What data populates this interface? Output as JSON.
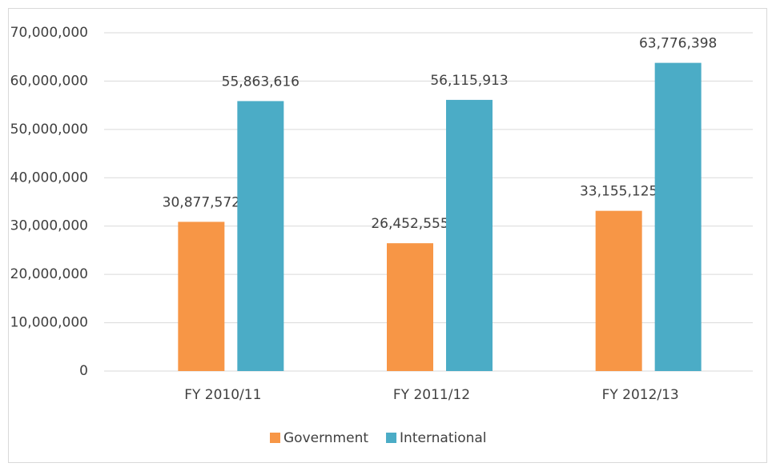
{
  "chart_data": {
    "type": "bar",
    "categories": [
      "FY 2010/11",
      "FY 2011/12",
      "FY 2012/13"
    ],
    "series": [
      {
        "name": "Government",
        "color": "#f79646",
        "values": [
          30877572,
          26452555,
          33155125
        ],
        "value_labels": [
          "30,877,572",
          "26,452,555",
          "33,155,125"
        ]
      },
      {
        "name": "International",
        "color": "#4bacc6",
        "values": [
          55863616,
          56115913,
          63776398
        ],
        "value_labels": [
          "55,863,616",
          "56,115,913",
          "63,776,398"
        ]
      }
    ],
    "ylim": [
      0,
      70000000
    ],
    "yticks": [
      0,
      {
        "value": 10000000,
        "label": "10,000,000"
      },
      {
        "value": 20000000,
        "label": "20,000,000"
      },
      {
        "value": 30000000,
        "label": "30,000,000"
      },
      {
        "value": 40000000,
        "label": "40,000,000"
      },
      {
        "value": 50000000,
        "label": "50,000,000"
      },
      {
        "value": 60000000,
        "label": "60,000,000"
      },
      {
        "value": 70000000,
        "label": "70,000,000"
      }
    ],
    "grid": true,
    "legend": "bottom"
  }
}
